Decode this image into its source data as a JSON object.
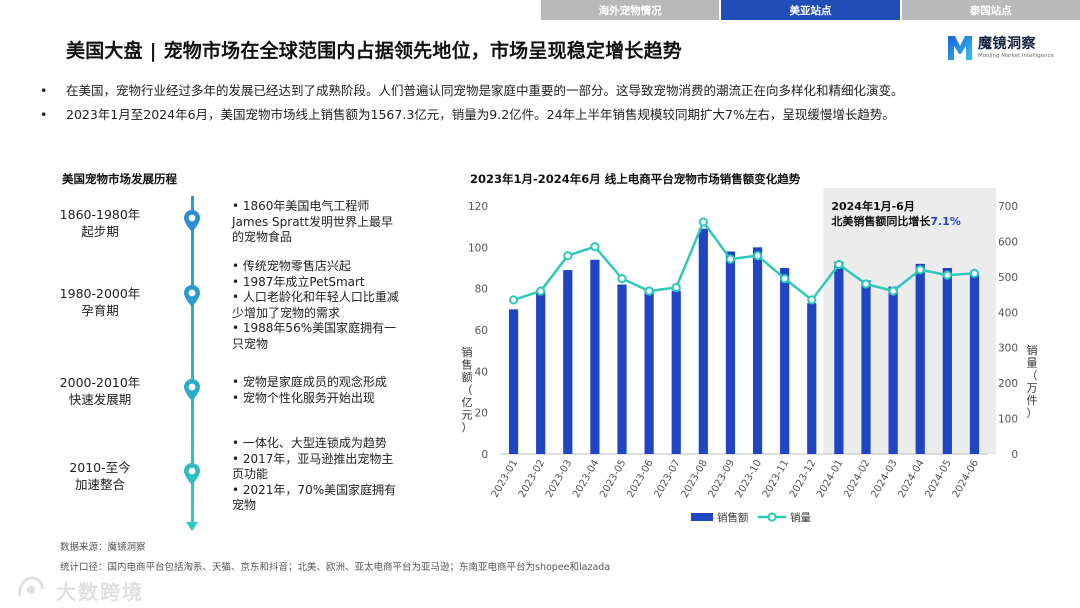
{
  "nav": {
    "tabs": [
      {
        "label": "海外宠物情况"
      },
      {
        "label": "美亚站点"
      },
      {
        "label": "泰国站点"
      }
    ],
    "active_index": 1
  },
  "header": {
    "title": "美国大盘 | 宠物市场在全球范围内占据领先地位，市场呈现稳定增长趋势"
  },
  "logo": {
    "name": "魔镜洞察",
    "subtitle": "Moojing Market Intelligence"
  },
  "bullets": [
    "在美国，宠物行业经过多年的发展已经达到了成熟阶段。人们普遍认同宠物是家庭中重要的一部分。这导致宠物消费的潮流正在向多样化和精细化演变。",
    "2023年1月至2024年6月，美国宠物市场线上销售额为1567.3亿元，销量为9.2亿件。24年上半年销售规模较同期扩大7%左右，呈现缓慢增长趋势。"
  ],
  "timeline": {
    "title": "美国宠物市场发展历程",
    "eras": [
      {
        "period": "1860-1980年",
        "name": "起步期",
        "items": [
          "•  1860年美国电气工程师",
          "James Spratt发明世界上最早",
          "的宠物食品"
        ]
      },
      {
        "period": "1980-2000年",
        "name": "孕育期",
        "items": [
          "• 传统宠物零售店兴起",
          "• 1987年成立PetSmart",
          "• 人口老龄化和年轻人口比重减",
          "少增加了宠物的需求",
          "• 1988年56%美国家庭拥有一",
          "只宠物"
        ]
      },
      {
        "period": "2000-2010年",
        "name": "快速发展期",
        "items": [
          "•  宠物是家庭成员的观念形成",
          "•  宠物个性化服务开始出现"
        ]
      },
      {
        "period": "2010-至今",
        "name": "加速整合",
        "items": [
          "•  一体化、大型连锁成为趋势",
          "• 2017年，亚马逊推出宠物主",
          "页功能",
          "• 2021年，70%美国家庭拥有",
          "宠物"
        ]
      }
    ]
  },
  "footer": {
    "source": "数据来源：魔镜洞察",
    "note": "统计口径：国内电商平台包括淘系、天猫、京东和抖音；北美、欧洲、亚太电商平台为亚马逊；东南亚电商平台为shopee和lazada"
  },
  "watermark": {
    "text": "大数跨境"
  },
  "colors": {
    "bar": "#1f45c4",
    "line": "#2ec9b8",
    "nav_active": "#1f4fb6",
    "nav_inactive": "#b9b9b9",
    "highlight_bg": "#ececec",
    "highlight_text": "#1f45c4"
  },
  "chart_data": {
    "type": "bar",
    "title": "2023年1月-2024年6月 线上电商平台宠物市场销售额变化趋势",
    "categories": [
      "2023-01",
      "2023-02",
      "2023-03",
      "2023-04",
      "2023-05",
      "2023-06",
      "2023-07",
      "2023-08",
      "2023-09",
      "2023-10",
      "2023-11",
      "2023-12",
      "2024-01",
      "2024-02",
      "2024-03",
      "2024-04",
      "2024-05",
      "2024-06"
    ],
    "series": [
      {
        "name": "销售额",
        "type": "bar",
        "axis": "left",
        "values": [
          70,
          79,
          89,
          94,
          82,
          79,
          79,
          109,
          98,
          100,
          90,
          73,
          93,
          84,
          81,
          92,
          90,
          88
        ]
      },
      {
        "name": "销量",
        "type": "line",
        "axis": "right",
        "values": [
          435,
          460,
          560,
          585,
          495,
          460,
          470,
          655,
          550,
          560,
          495,
          435,
          535,
          480,
          460,
          520,
          505,
          510
        ]
      }
    ],
    "ylabel": "销售额（亿元）",
    "ylabel_right": "销量（万件）",
    "ylim": [
      0,
      120
    ],
    "yticks": [
      0,
      20,
      40,
      60,
      80,
      100,
      120
    ],
    "ylim_right": [
      0,
      700
    ],
    "yticks_right": [
      0,
      100,
      200,
      300,
      400,
      500,
      600,
      700
    ],
    "grid": false,
    "legend": "bottom",
    "highlight": {
      "from": "2024-01",
      "to": "2024-06",
      "title": "2024年1月-6月",
      "text": "北美销售额同比增长",
      "value": "7.1%"
    }
  }
}
